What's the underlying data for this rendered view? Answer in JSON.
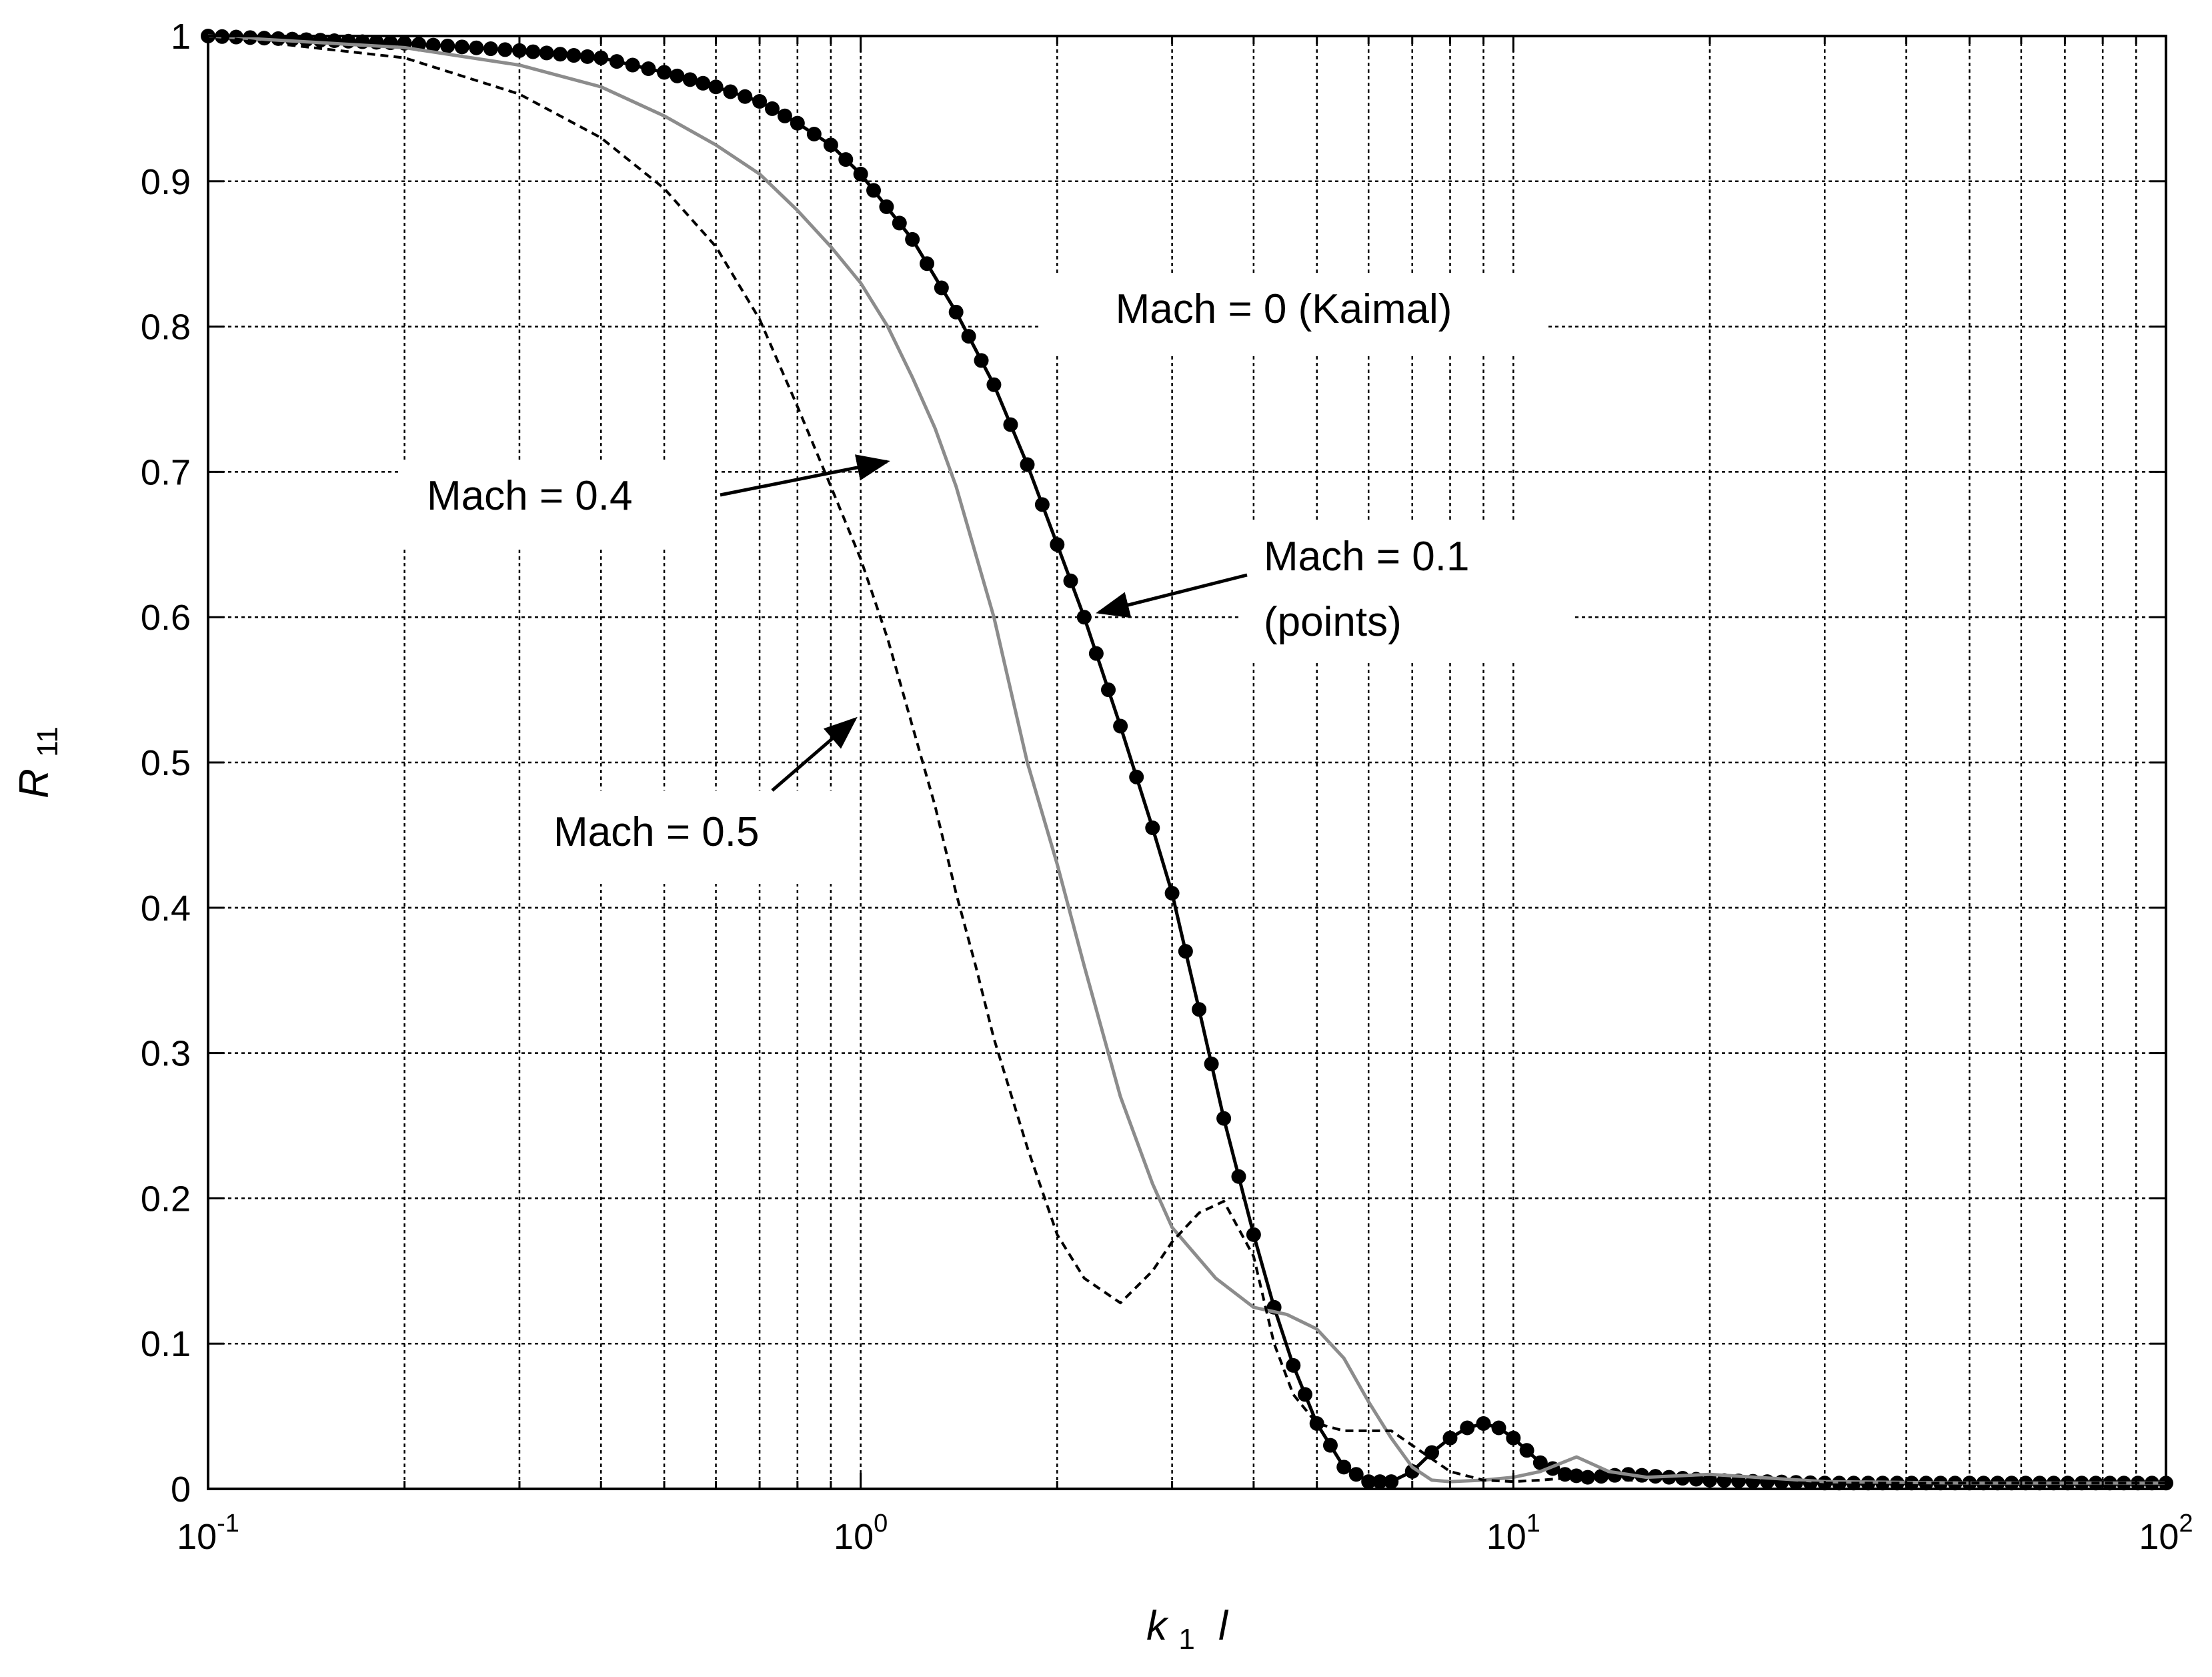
{
  "chart_data": {
    "type": "line",
    "xlabel_main": "k",
    "xlabel_sub": "1",
    "xlabel_var": "l",
    "ylabel_main": "R",
    "ylabel_sub": "11",
    "xscale": "log",
    "xlim": [
      0.1,
      100
    ],
    "ylim": [
      0,
      1
    ],
    "grid": true,
    "x_ticks": [
      {
        "base": "10",
        "exp": "-1",
        "value": 0.1
      },
      {
        "base": "10",
        "exp": "0",
        "value": 1
      },
      {
        "base": "10",
        "exp": "1",
        "value": 10
      },
      {
        "base": "10",
        "exp": "2",
        "value": 100
      }
    ],
    "y_ticks": [
      "0",
      "0.1",
      "0.2",
      "0.3",
      "0.4",
      "0.5",
      "0.6",
      "0.7",
      "0.8",
      "0.9",
      "1"
    ],
    "series": [
      {
        "name": "Mach = 0 (Kaimal)",
        "style": "solid",
        "color": "#000000",
        "x": [
          0.1,
          0.2,
          0.3,
          0.4,
          0.5,
          0.6,
          0.7,
          0.8,
          0.9,
          1.0,
          1.2,
          1.4,
          1.6,
          1.8,
          2.0,
          2.2,
          2.5,
          2.8,
          3.0,
          3.3,
          3.6,
          4.0,
          4.3,
          4.6,
          5.0,
          5.5,
          6.0,
          6.5,
          7.0,
          7.5,
          8.0,
          8.5,
          9.0,
          9.5,
          10.0,
          11.0,
          12.0,
          13.0,
          15.0,
          20.0,
          30.0,
          50.0,
          100.0
        ],
        "y": [
          1.0,
          0.995,
          0.99,
          0.985,
          0.975,
          0.965,
          0.955,
          0.94,
          0.925,
          0.905,
          0.86,
          0.81,
          0.76,
          0.705,
          0.65,
          0.6,
          0.525,
          0.455,
          0.41,
          0.33,
          0.255,
          0.175,
          0.125,
          0.085,
          0.045,
          0.015,
          0.005,
          0.005,
          0.012,
          0.025,
          0.035,
          0.042,
          0.045,
          0.042,
          0.035,
          0.018,
          0.01,
          0.008,
          0.01,
          0.006,
          0.004,
          0.004,
          0.004
        ]
      },
      {
        "name": "Mach = 0.1 (points)",
        "style": "points",
        "color": "#000000",
        "x": [
          0.1,
          0.2,
          0.3,
          0.4,
          0.5,
          0.6,
          0.7,
          0.8,
          0.9,
          1.0,
          1.2,
          1.4,
          1.6,
          1.8,
          2.0,
          2.2,
          2.5,
          2.8,
          3.0,
          3.3,
          3.6,
          4.0,
          4.3,
          4.6,
          5.0,
          5.5,
          6.0,
          6.5,
          7.0,
          7.5,
          8.0,
          8.5,
          9.0,
          9.5,
          10.0,
          11.0,
          12.0,
          13.0,
          15.0,
          20.0,
          30.0,
          50.0,
          100.0
        ],
        "y": [
          1.0,
          0.995,
          0.99,
          0.985,
          0.975,
          0.965,
          0.955,
          0.94,
          0.925,
          0.905,
          0.86,
          0.81,
          0.76,
          0.705,
          0.65,
          0.6,
          0.525,
          0.455,
          0.41,
          0.33,
          0.255,
          0.175,
          0.125,
          0.085,
          0.045,
          0.015,
          0.005,
          0.005,
          0.012,
          0.025,
          0.035,
          0.042,
          0.045,
          0.042,
          0.035,
          0.018,
          0.01,
          0.008,
          0.01,
          0.006,
          0.004,
          0.004,
          0.004
        ]
      },
      {
        "name": "Mach = 0.4",
        "style": "solid",
        "color": "#8c8c8c",
        "x": [
          0.1,
          0.2,
          0.3,
          0.4,
          0.5,
          0.6,
          0.7,
          0.8,
          0.9,
          1.0,
          1.1,
          1.2,
          1.3,
          1.4,
          1.6,
          1.8,
          2.0,
          2.2,
          2.5,
          2.8,
          3.0,
          3.5,
          4.0,
          4.5,
          5.0,
          5.5,
          6.0,
          6.5,
          7.0,
          7.5,
          8.0,
          9.0,
          10.0,
          11.0,
          12.5,
          14.0,
          16.0,
          20.0,
          30.0,
          50.0,
          100.0
        ],
        "y": [
          1.0,
          0.992,
          0.98,
          0.965,
          0.945,
          0.925,
          0.905,
          0.88,
          0.855,
          0.83,
          0.8,
          0.765,
          0.73,
          0.69,
          0.6,
          0.5,
          0.43,
          0.36,
          0.27,
          0.21,
          0.18,
          0.145,
          0.125,
          0.12,
          0.11,
          0.09,
          0.06,
          0.035,
          0.015,
          0.006,
          0.005,
          0.006,
          0.008,
          0.012,
          0.022,
          0.012,
          0.008,
          0.01,
          0.005,
          0.004,
          0.004
        ]
      },
      {
        "name": "Mach = 0.5",
        "style": "dashed",
        "color": "#000000",
        "x": [
          0.1,
          0.2,
          0.3,
          0.4,
          0.5,
          0.6,
          0.7,
          0.8,
          0.9,
          1.0,
          1.1,
          1.2,
          1.3,
          1.4,
          1.5,
          1.6,
          1.8,
          2.0,
          2.2,
          2.5,
          2.8,
          3.0,
          3.3,
          3.6,
          4.0,
          4.3,
          4.6,
          5.0,
          5.5,
          6.0,
          6.5,
          7.0,
          8.0,
          9.0,
          10.0,
          11.0,
          12.5,
          15.0,
          20.0,
          30.0,
          50.0,
          100.0
        ],
        "y": [
          1.0,
          0.985,
          0.96,
          0.93,
          0.895,
          0.855,
          0.805,
          0.745,
          0.69,
          0.64,
          0.585,
          0.525,
          0.47,
          0.41,
          0.36,
          0.31,
          0.235,
          0.175,
          0.145,
          0.128,
          0.15,
          0.17,
          0.19,
          0.198,
          0.16,
          0.1,
          0.065,
          0.045,
          0.04,
          0.04,
          0.04,
          0.03,
          0.012,
          0.006,
          0.005,
          0.006,
          0.008,
          0.006,
          0.005,
          0.004,
          0.004,
          0.004
        ]
      }
    ],
    "annotations": [
      {
        "id": "m0",
        "lines": [
          "Mach = 0 (Kaimal)"
        ]
      },
      {
        "id": "m04",
        "lines": [
          "Mach = 0.4"
        ]
      },
      {
        "id": "m01",
        "lines": [
          "Mach = 0.1",
          "(points)"
        ]
      },
      {
        "id": "m05",
        "lines": [
          "Mach = 0.5"
        ]
      }
    ]
  }
}
